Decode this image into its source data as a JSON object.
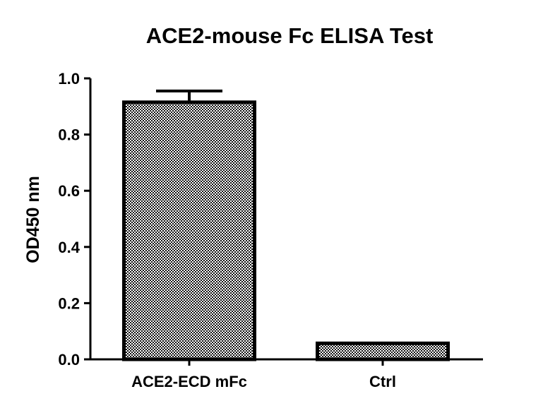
{
  "chart_data": {
    "type": "bar",
    "title": "ACE2-mouse Fc ELISA Test",
    "xlabel": "",
    "ylabel": "OD450 nm",
    "categories": [
      "ACE2-ECD mFc",
      "Ctrl"
    ],
    "values": [
      0.915,
      0.057
    ],
    "error_bars": [
      0.04,
      0.0
    ],
    "ylim": [
      0.0,
      1.0
    ],
    "yticks": [
      "0.0",
      "0.2",
      "0.4",
      "0.6",
      "0.8",
      "1.0"
    ],
    "grid": false,
    "legend": "none",
    "bar_fill": "#9a9a9a",
    "bar_stroke": "#000000",
    "axis_color": "#000000"
  }
}
